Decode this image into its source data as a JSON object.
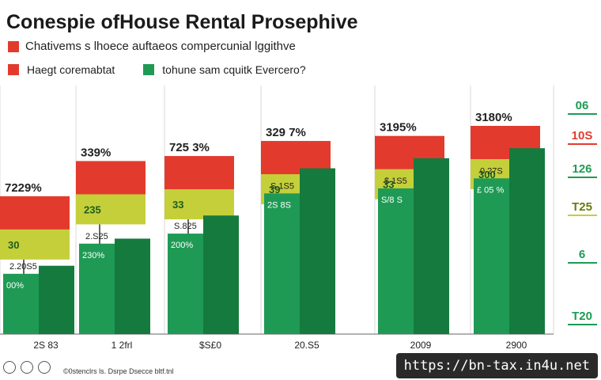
{
  "title": "Conespie ofHouse Rental Prosephive",
  "subtitle": "Chativems s lhoece auftaeos compercunial lggithve",
  "legend": [
    {
      "label": "Haegt coremabtat",
      "color": "#e23b2e"
    },
    {
      "label": "tohune sam cquitk Evercero?",
      "color": "#1f9a55"
    }
  ],
  "colors": {
    "red": "#e23b2e",
    "yellow": "#c5cf3a",
    "green": "#1f9a55",
    "dark_green": "#157a3e",
    "grid": "#d8d8d8"
  },
  "chart_data": {
    "type": "bar",
    "categories": [
      "2S 83",
      "1 2frl",
      "$S£0",
      "20.S5",
      "2009",
      "2900"
    ],
    "series": [
      {
        "values": [
          60,
          95,
          100,
          115,
          120,
          130
        ]
      },
      {
        "values": [
          15,
          25,
          30,
          40,
          45,
          70
        ]
      },
      {
        "values": [
          60,
          90,
          100,
          140,
          145,
          155
        ]
      },
      {
        "values": [
          68,
          95,
          118,
          165,
          175,
          185
        ]
      }
    ],
    "top_labels": [
      "7229%",
      "339%",
      "725 3%",
      "329 7%",
      "3195%",
      "3180%"
    ],
    "mid_labels": [
      "30",
      "235",
      "33",
      "39",
      "33",
      "300"
    ],
    "green_labels": [
      "2.20S5",
      "2.S25",
      "S.825",
      "S.1S5",
      "$ 1S5",
      "0 27S"
    ],
    "green_inner_labels": [
      "00%",
      "230%",
      "200%",
      "2S 8S",
      "S/8 S",
      "£ 05 %"
    ],
    "side_labels": [
      "06",
      "10S",
      "126",
      "T25",
      "6",
      "T20"
    ],
    "ylim": [
      0,
      260
    ]
  },
  "url": "https://bn-tax.in4u.net",
  "footer_text": "©0stenclrs ls. Dsrpe Dsecce bltf.tnl"
}
